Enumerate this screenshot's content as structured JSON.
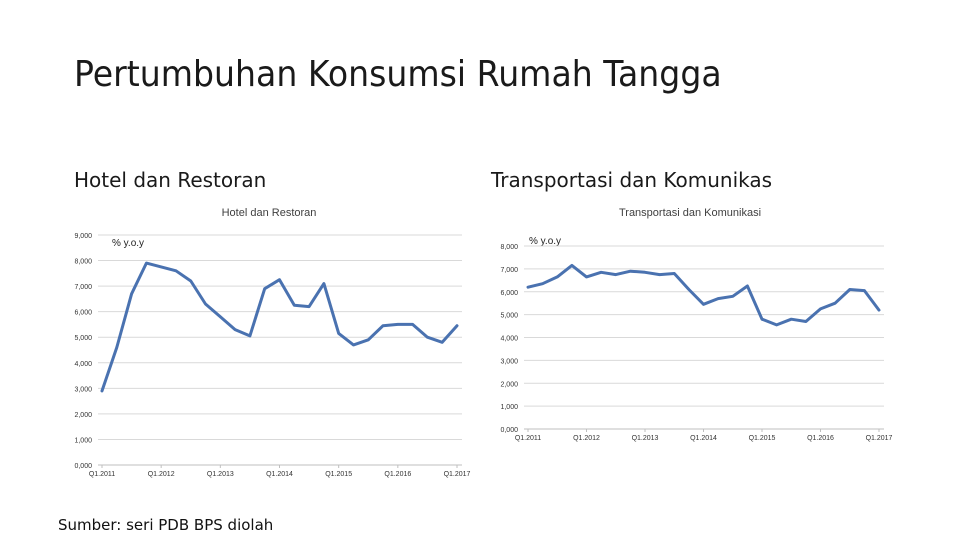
{
  "page": {
    "title": "Pertumbuhan Konsumsi Rumah Tangga",
    "left_heading": "Hotel dan Restoran",
    "right_heading": "Transportasi dan Komunikas",
    "source": "Sumber: seri PDB BPS diolah"
  },
  "chart_data": [
    {
      "type": "line",
      "title": "Hotel dan Restoran",
      "unit_label": "% y.o.y",
      "color": "#4a72b0",
      "grid": true,
      "ylim": [
        0,
        9
      ],
      "y_ticks": [
        0,
        1,
        2,
        3,
        4,
        5,
        6,
        7,
        8,
        9
      ],
      "y_tick_labels": [
        "0,000",
        "1,000",
        "2,000",
        "3,000",
        "4,000",
        "5,000",
        "6,000",
        "7,000",
        "8,000",
        "9,000"
      ],
      "x_tick_labels": [
        "Q1.2011",
        "Q1.2012",
        "Q1.2013",
        "Q1.2014",
        "Q1.2015",
        "Q1.2016",
        "Q1.2017"
      ],
      "x_tick_positions": [
        0,
        4,
        8,
        12,
        16,
        20,
        24
      ],
      "values": [
        2.9,
        4.6,
        6.7,
        7.9,
        7.75,
        7.6,
        7.2,
        6.3,
        5.8,
        5.3,
        5.05,
        6.9,
        7.25,
        6.25,
        6.2,
        7.1,
        5.15,
        4.7,
        4.9,
        5.45,
        5.5,
        5.5,
        5.0,
        4.8,
        5.45
      ]
    },
    {
      "type": "line",
      "title": "Transportasi dan Komunikasi",
      "unit_label": "% y.o.y",
      "color": "#4a72b0",
      "grid": true,
      "ylim": [
        0,
        8
      ],
      "y_ticks": [
        0,
        1,
        2,
        3,
        4,
        5,
        6,
        7,
        8
      ],
      "y_tick_labels": [
        "0,000",
        "1,000",
        "2,000",
        "3,000",
        "4,000",
        "5,000",
        "6,000",
        "7,000",
        "8,000"
      ],
      "x_tick_labels": [
        "Q1.2011",
        "Q1.2012",
        "Q1.2013",
        "Q1.2014",
        "Q1.2015",
        "Q1.2016",
        "Q1.2017"
      ],
      "x_tick_positions": [
        0,
        4,
        8,
        12,
        16,
        20,
        24
      ],
      "values": [
        6.2,
        6.35,
        6.65,
        7.15,
        6.65,
        6.85,
        6.75,
        6.9,
        6.85,
        6.75,
        6.8,
        6.1,
        5.45,
        5.7,
        5.8,
        6.25,
        4.8,
        4.55,
        4.8,
        4.7,
        5.25,
        5.5,
        6.1,
        6.05,
        5.2
      ]
    }
  ]
}
